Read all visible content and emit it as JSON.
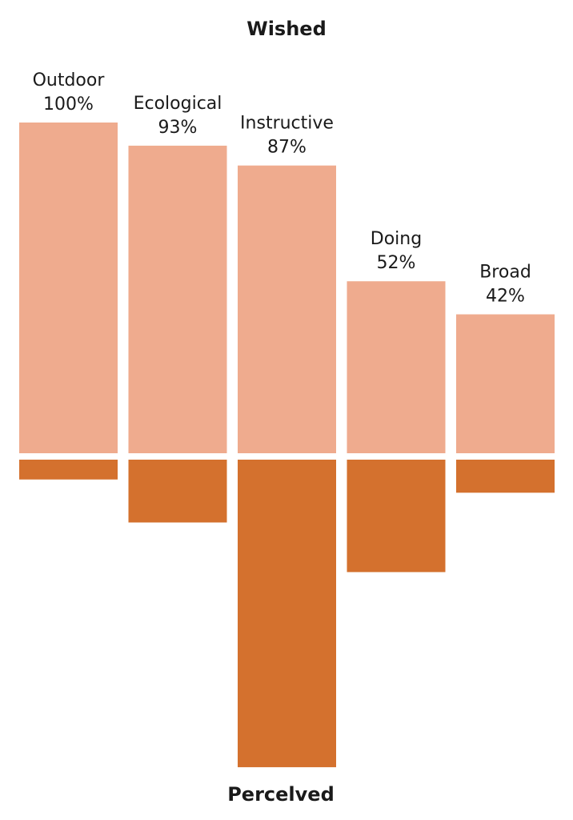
{
  "chart_data": {
    "type": "bar",
    "title_top": "Wished",
    "title_bottom": "Percelved",
    "categories": [
      "Outdoor",
      "Ecological",
      "Instructive",
      "Doing",
      "Broad"
    ],
    "series": [
      {
        "values": [
          100,
          93,
          87,
          52,
          42
        ],
        "value_labels": [
          "100%",
          "93%",
          "87%",
          "52%",
          "42%"
        ],
        "color": "#EFAB8E",
        "direction": "up"
      },
      {
        "values": [
          6,
          19,
          93,
          34,
          10
        ],
        "color": "#D4712E",
        "direction": "down"
      }
    ],
    "ylim": [
      0,
      100
    ],
    "grid": false,
    "legend": "none"
  }
}
